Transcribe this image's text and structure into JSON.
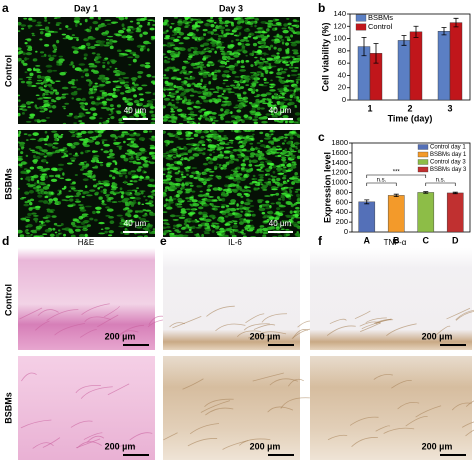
{
  "panels": {
    "a": {
      "label": "a",
      "columns": [
        "Day 1",
        "Day 3"
      ],
      "rows": [
        "Control",
        "BSBMs"
      ],
      "scale_bar": "40 µm"
    },
    "d": {
      "label": "d",
      "title": "H&E"
    },
    "e": {
      "label": "e",
      "title": "IL-6"
    },
    "f": {
      "label": "f",
      "title": "TNF-α"
    },
    "def_rows": [
      "Control",
      "BSBMs"
    ],
    "def_scale_bar": "200 µm"
  },
  "chart_data": [
    {
      "type": "bar",
      "panel_label": "b",
      "categories": [
        "1",
        "2",
        "3"
      ],
      "series": [
        {
          "name": "BSBMs",
          "color": "#5b7fc4",
          "values": [
            87,
            97,
            112
          ],
          "errors": [
            15,
            8,
            6
          ]
        },
        {
          "name": "Control",
          "color": "#c0161b",
          "values": [
            76,
            111,
            126
          ],
          "errors": [
            16,
            9,
            7
          ]
        }
      ],
      "ylim": [
        0,
        140
      ],
      "yticks": [
        0,
        20,
        40,
        60,
        80,
        100,
        120,
        140
      ],
      "x_label": "Time (day)",
      "y_label": "Cell viability (%)",
      "legend": "upper left"
    },
    {
      "type": "bar",
      "panel_label": "c",
      "categories": [
        "A",
        "B",
        "C",
        "D"
      ],
      "values": [
        610,
        740,
        800,
        790
      ],
      "errors": [
        40,
        25,
        15,
        15
      ],
      "colors": [
        "#5470b8",
        "#f39a2a",
        "#8dbd47",
        "#c03030"
      ],
      "legend_labels": [
        "Control day 1",
        "BSBMs day 1",
        "Control day 3",
        "BSBMs day 3"
      ],
      "ylim": [
        0,
        1800
      ],
      "yticks": [
        0,
        200,
        400,
        600,
        800,
        1000,
        1200,
        1400,
        1600,
        1800
      ],
      "y_label": "Expression level",
      "legend": "upper right",
      "annotations": [
        "***",
        "n.s.",
        "n.s."
      ]
    }
  ]
}
